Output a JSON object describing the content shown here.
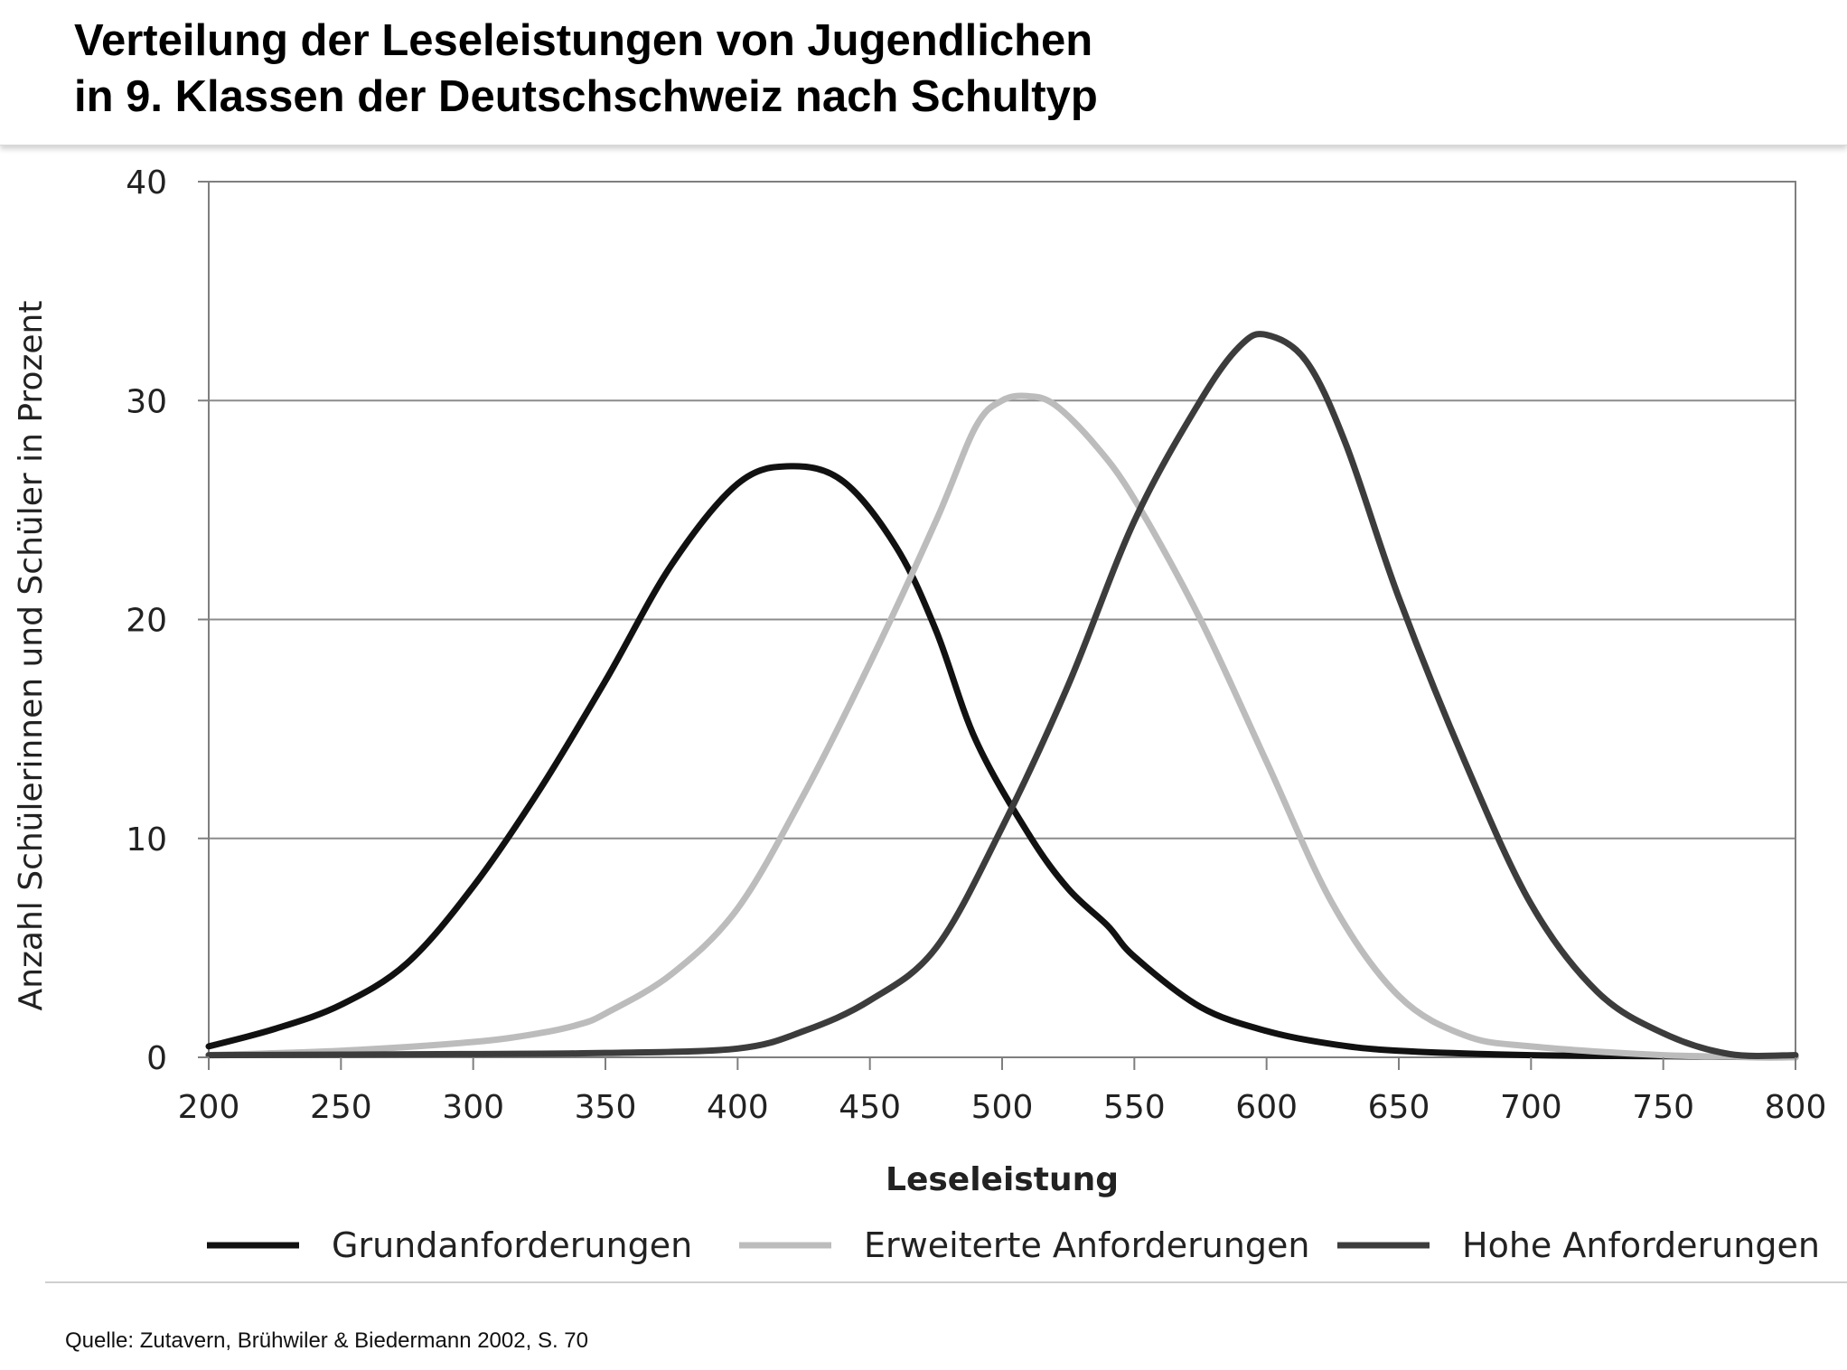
{
  "header": {
    "title_line1": "Verteilung der Leseleistungen von Jugendlichen",
    "title_line2": "in 9. Klassen der Deutschschweiz nach Schultyp"
  },
  "source": "Quelle: Zutavern, Brühwiler & Biedermann 2002, S. 70",
  "chart_data": {
    "type": "line",
    "title": "Verteilung der Leseleistungen von Jugendlichen in 9. Klassen der Deutschschweiz nach Schultyp",
    "xlabel": "Leseleistung",
    "ylabel": "Anzahl Schülerinnen und Schüler in Prozent",
    "xlim": [
      200,
      800
    ],
    "ylim": [
      0,
      40
    ],
    "xticks": [
      200,
      250,
      300,
      350,
      400,
      450,
      500,
      550,
      600,
      650,
      700,
      750,
      800
    ],
    "yticks": [
      0,
      10,
      20,
      30,
      40
    ],
    "grid": "horizontal",
    "legend_position": "bottom",
    "series": [
      {
        "name": "Grundanforderungen",
        "color": "#111111",
        "x": [
          200,
          225,
          250,
          275,
          300,
          325,
          350,
          375,
          400,
          420,
          440,
          460,
          475,
          490,
          510,
          525,
          540,
          550,
          575,
          600,
          625,
          650,
          700,
          750,
          800
        ],
        "y": [
          0.5,
          1.3,
          2.4,
          4.3,
          7.8,
          12.2,
          17.2,
          22.5,
          26.2,
          27.0,
          26.3,
          23.3,
          19.5,
          14.5,
          10.2,
          7.7,
          6.0,
          4.6,
          2.3,
          1.2,
          0.6,
          0.3,
          0.1,
          0.05,
          0.0
        ]
      },
      {
        "name": "Erweiterte Anforderungen",
        "color": "#bcbcbc",
        "x": [
          200,
          250,
          300,
          325,
          340,
          350,
          375,
          400,
          425,
          450,
          475,
          490,
          500,
          510,
          520,
          535,
          550,
          575,
          600,
          625,
          650,
          675,
          700,
          750,
          800
        ],
        "y": [
          0.1,
          0.3,
          0.7,
          1.1,
          1.5,
          2.0,
          3.8,
          6.8,
          12.0,
          18.0,
          24.5,
          28.8,
          30.0,
          30.2,
          29.8,
          28.0,
          25.5,
          20.0,
          13.5,
          7.0,
          2.8,
          1.0,
          0.5,
          0.1,
          0.0
        ]
      },
      {
        "name": "Hohe Anforderungen",
        "color": "#3c3c3c",
        "x": [
          200,
          300,
          350,
          400,
          425,
          450,
          475,
          500,
          525,
          550,
          575,
          590,
          600,
          615,
          630,
          650,
          675,
          700,
          725,
          750,
          775,
          800
        ],
        "y": [
          0.1,
          0.15,
          0.2,
          0.4,
          1.2,
          2.6,
          5.0,
          10.5,
          17.0,
          24.5,
          30.0,
          32.5,
          33.0,
          31.8,
          28.0,
          21.0,
          13.5,
          7.0,
          3.0,
          1.1,
          0.15,
          0.1
        ]
      }
    ]
  }
}
